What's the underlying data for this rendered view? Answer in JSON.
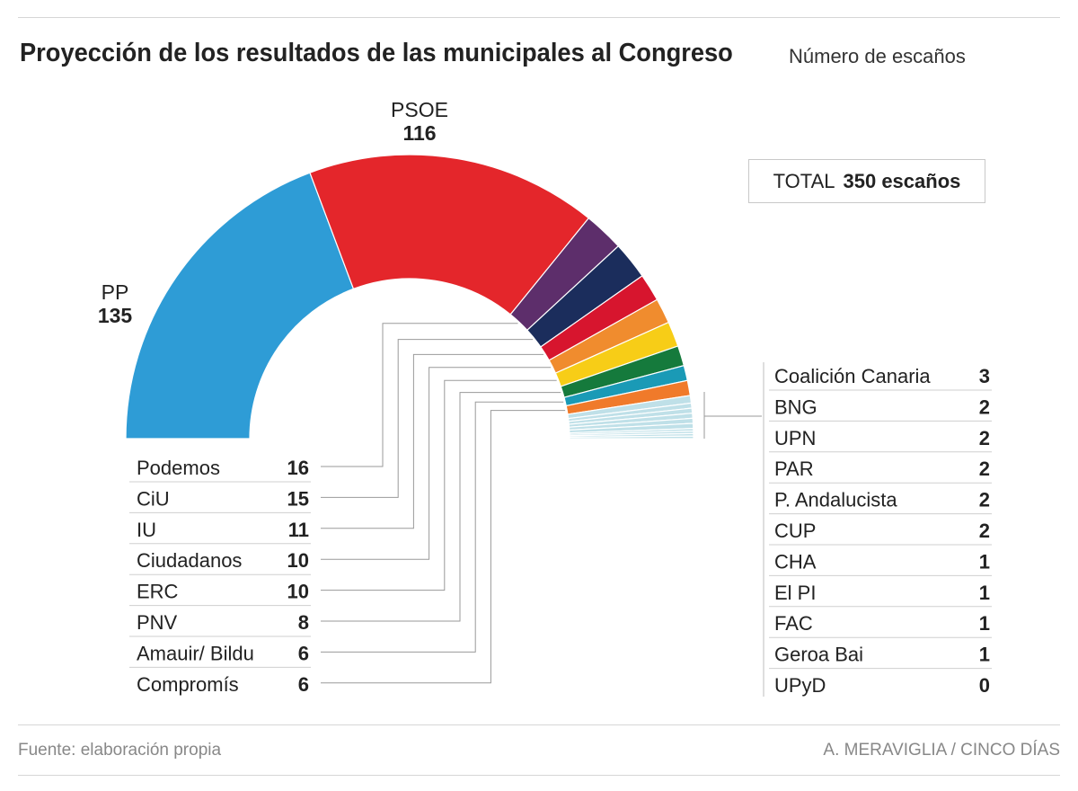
{
  "header": {
    "title": "Proyección de los resultados de las municipales al Congreso",
    "subtitle": "Número de escaños"
  },
  "total": {
    "label": "TOTAL",
    "value": "350 escaños"
  },
  "footer": {
    "source": "Fuente: elaboración propia",
    "credit": "A. MERAVIGLIA / CINCO DÍAS"
  },
  "chart_data": {
    "type": "pie",
    "variant": "half-donut parliament",
    "total_seats": 350,
    "parties": [
      {
        "name": "PP",
        "seats": 135,
        "color": "#2e9cd6"
      },
      {
        "name": "PSOE",
        "seats": 116,
        "color": "#e4262b"
      },
      {
        "name": "Podemos",
        "seats": 16,
        "color": "#5d2e6b"
      },
      {
        "name": "CiU",
        "seats": 15,
        "color": "#1b2d5c"
      },
      {
        "name": "IU",
        "seats": 11,
        "color": "#d7152e"
      },
      {
        "name": "Ciudadanos",
        "seats": 10,
        "color": "#f08c2e"
      },
      {
        "name": "ERC",
        "seats": 10,
        "color": "#f7cd17"
      },
      {
        "name": "PNV",
        "seats": 8,
        "color": "#157a3c"
      },
      {
        "name": "Amauir/ Bildu",
        "seats": 6,
        "color": "#1a9ab6"
      },
      {
        "name": "Compromís",
        "seats": 6,
        "color": "#f07a2a"
      },
      {
        "name": "Coalición Canaria",
        "seats": 3,
        "color": "#bfe0e8"
      },
      {
        "name": "BNG",
        "seats": 2,
        "color": "#bfe0e8"
      },
      {
        "name": "UPN",
        "seats": 2,
        "color": "#bfe0e8"
      },
      {
        "name": "PAR",
        "seats": 2,
        "color": "#bfe0e8"
      },
      {
        "name": "P. Andalucista",
        "seats": 2,
        "color": "#bfe0e8"
      },
      {
        "name": "CUP",
        "seats": 2,
        "color": "#bfe0e8"
      },
      {
        "name": "CHA",
        "seats": 1,
        "color": "#bfe0e8"
      },
      {
        "name": "El PI",
        "seats": 1,
        "color": "#bfe0e8"
      },
      {
        "name": "FAC",
        "seats": 1,
        "color": "#bfe0e8"
      },
      {
        "name": "Geroa Bai",
        "seats": 1,
        "color": "#bfe0e8"
      },
      {
        "name": "UPyD",
        "seats": 0,
        "color": "#bfe0e8"
      }
    ],
    "top_labels": [
      "PP",
      "PSOE"
    ],
    "left_list": [
      "Podemos",
      "CiU",
      "IU",
      "Ciudadanos",
      "ERC",
      "PNV",
      "Amauir/ Bildu",
      "Compromís"
    ],
    "right_list": [
      "Coalición Canaria",
      "BNG",
      "UPN",
      "PAR",
      "P. Andalucista",
      "CUP",
      "CHA",
      "El PI",
      "FAC",
      "Geroa Bai",
      "UPyD"
    ]
  }
}
